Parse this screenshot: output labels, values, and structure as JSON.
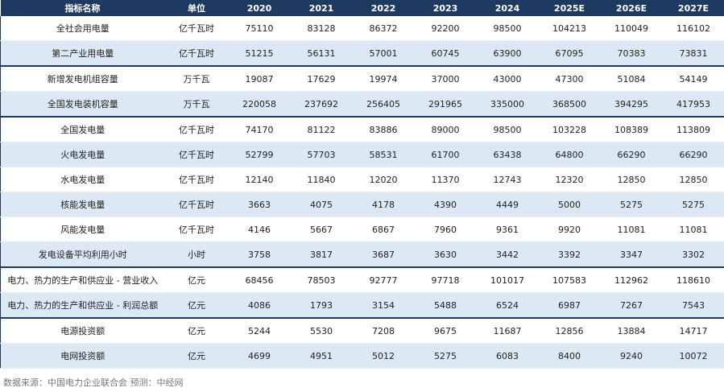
{
  "table": {
    "header": [
      "指标名称",
      "单位",
      "2020",
      "2021",
      "2022",
      "2023",
      "2024",
      "2025E",
      "2026E",
      "2027E"
    ],
    "rows": [
      [
        "全社会用电量",
        "亿千瓦时",
        75110,
        83128,
        86372,
        92200,
        98500,
        104213,
        110049,
        116102
      ],
      [
        "第二产业用电量",
        "亿千瓦时",
        51215,
        56131,
        57001,
        60745,
        63900,
        67095,
        70383,
        73831
      ],
      [
        "新增发电机组容量",
        "万千瓦",
        19087,
        17629,
        19974,
        37000,
        43000,
        47300,
        51084,
        54149
      ],
      [
        "全国发电装机容量",
        "万千瓦",
        220058,
        237692,
        256405,
        291965,
        335000,
        368500,
        394295,
        417953
      ],
      [
        "全国发电量",
        "亿千瓦时",
        74170,
        81122,
        83886,
        89000,
        98500,
        103228,
        108389,
        113809
      ],
      [
        "火电发电量",
        "亿千瓦时",
        52799,
        57703,
        58531,
        61700,
        63438,
        64800,
        66290,
        66290
      ],
      [
        "水电发电量",
        "亿千瓦时",
        12140,
        11840,
        12020,
        11370,
        12743,
        12320,
        12850,
        12850
      ],
      [
        "核能发电量",
        "亿千瓦时",
        3663,
        4075,
        4178,
        4390,
        4449,
        5000,
        5275,
        5275
      ],
      [
        "风能发电量",
        "亿千瓦时",
        4146,
        5667,
        6867,
        7960,
        9361,
        9920,
        11081,
        11081
      ],
      [
        "发电设备平均利用小时",
        "小时",
        3758,
        3817,
        3687,
        3630,
        3442,
        3392,
        3347,
        3302
      ],
      [
        "电力、热力的生产和供应业 - 营业收入",
        "亿元",
        68456,
        78503,
        92777,
        97718,
        101017,
        107583,
        112962,
        118610
      ],
      [
        "电力、热力的生产和供应业 - 利润总额",
        "亿元",
        4086,
        1793,
        3154,
        5488,
        6524,
        6987,
        7267,
        7543
      ],
      [
        "电源投资额",
        "亿元",
        5244,
        5530,
        7208,
        9675,
        11687,
        12856,
        13884,
        14717
      ],
      [
        "电网投资额",
        "亿元",
        4699,
        4951,
        5012,
        5275,
        6083,
        8400,
        9240,
        10072
      ]
    ]
  },
  "note": "数据来源：中国电力企业联合会  预测：中经网"
}
